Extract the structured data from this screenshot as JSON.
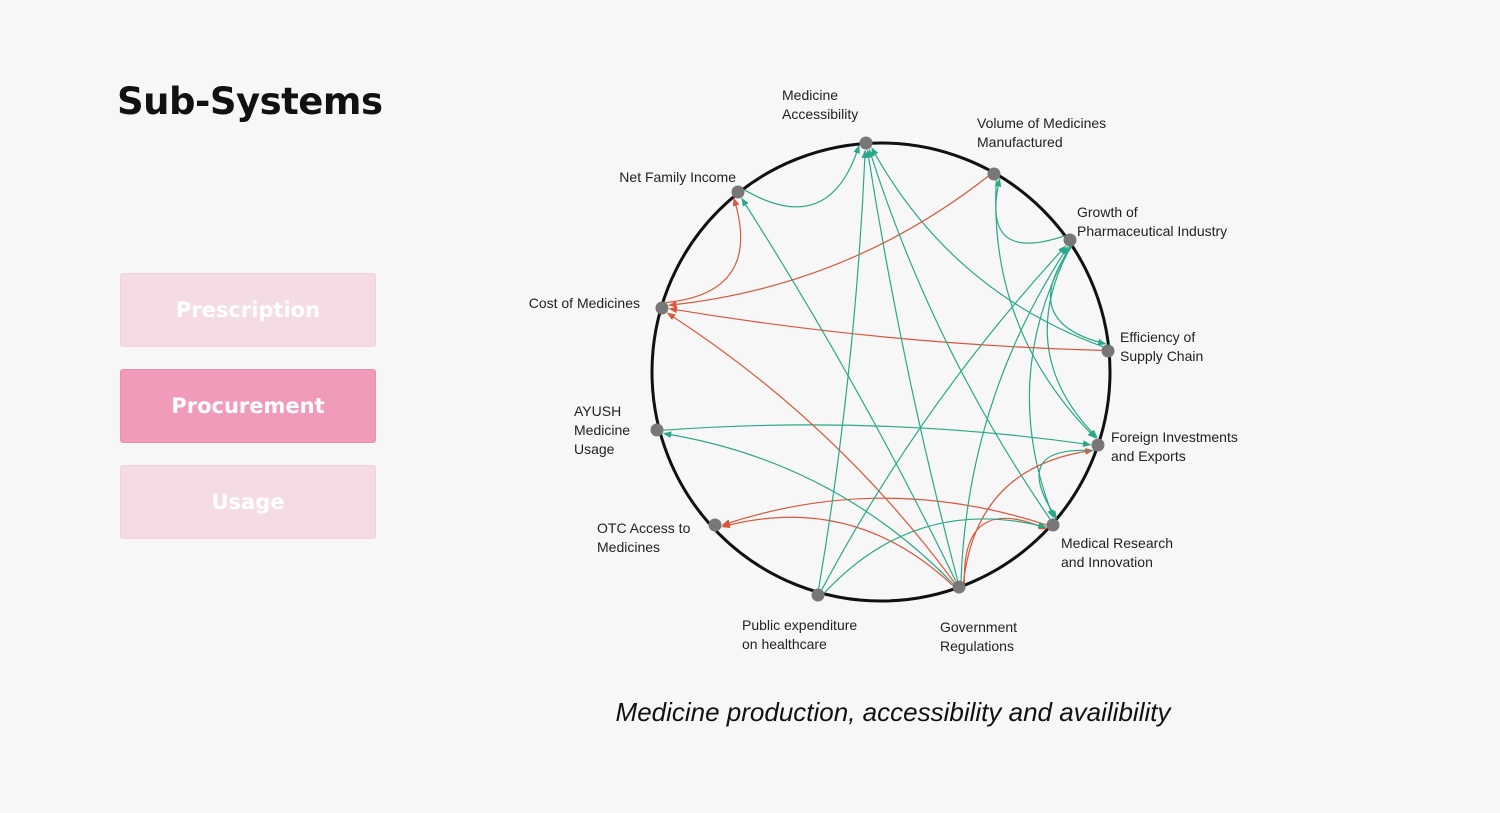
{
  "title": "Sub-Systems",
  "nav": [
    {
      "label": "Prescription",
      "active": false
    },
    {
      "label": "Procurement",
      "active": true
    },
    {
      "label": "Usage",
      "active": false
    }
  ],
  "caption": "Medicine production, accessibility and availibility",
  "colors": {
    "positive": "#2aa889",
    "negative": "#d9573c",
    "node": "#777777",
    "ring": "#111111"
  },
  "nodes": [
    {
      "id": "ma",
      "lines": [
        "Medicine",
        "Accessibility"
      ]
    },
    {
      "id": "vmm",
      "lines": [
        "Volume of Medicines",
        "Manufactured"
      ]
    },
    {
      "id": "gpi",
      "lines": [
        "Growth of",
        "Pharmaceutical Industry"
      ]
    },
    {
      "id": "esc",
      "lines": [
        "Efficiency of",
        "Supply Chain"
      ]
    },
    {
      "id": "fie",
      "lines": [
        "Foreign Investments",
        "and Exports"
      ]
    },
    {
      "id": "mri",
      "lines": [
        "Medical Research",
        "and Innovation"
      ]
    },
    {
      "id": "gr",
      "lines": [
        "Government",
        "Regulations"
      ]
    },
    {
      "id": "peh",
      "lines": [
        "Public expenditure",
        "on healthcare"
      ]
    },
    {
      "id": "otc",
      "lines": [
        "OTC Access to",
        "Medicines"
      ]
    },
    {
      "id": "ayu",
      "lines": [
        "AYUSH",
        "Medicine",
        "Usage"
      ]
    },
    {
      "id": "com",
      "lines": [
        "Cost of Medicines"
      ]
    },
    {
      "id": "nfi",
      "lines": [
        "Net Family Income"
      ]
    }
  ],
  "links": [
    {
      "from": "nfi",
      "to": "ma",
      "polarity": "positive"
    },
    {
      "from": "gpi",
      "to": "vmm",
      "polarity": "positive"
    },
    {
      "from": "gpi",
      "to": "esc",
      "polarity": "positive"
    },
    {
      "from": "gpi",
      "to": "fie",
      "polarity": "positive"
    },
    {
      "from": "gpi",
      "to": "mri",
      "polarity": "positive"
    },
    {
      "from": "esc",
      "to": "ma",
      "polarity": "positive"
    },
    {
      "from": "vmm",
      "to": "com",
      "polarity": "negative"
    },
    {
      "from": "vmm",
      "to": "fie",
      "polarity": "positive"
    },
    {
      "from": "esc",
      "to": "com",
      "polarity": "negative"
    },
    {
      "from": "com",
      "to": "nfi",
      "polarity": "negative"
    },
    {
      "from": "mri",
      "to": "ma",
      "polarity": "positive"
    },
    {
      "from": "mri",
      "to": "otc",
      "polarity": "negative"
    },
    {
      "from": "ayu",
      "to": "fie",
      "polarity": "positive"
    },
    {
      "from": "gr",
      "to": "com",
      "polarity": "negative"
    },
    {
      "from": "gr",
      "to": "ma",
      "polarity": "positive"
    },
    {
      "from": "gr",
      "to": "nfi",
      "polarity": "positive"
    },
    {
      "from": "gr",
      "to": "gpi",
      "polarity": "positive"
    },
    {
      "from": "gr",
      "to": "fie",
      "polarity": "negative"
    },
    {
      "from": "gr",
      "to": "mri",
      "polarity": "negative"
    },
    {
      "from": "gr",
      "to": "ayu",
      "polarity": "positive"
    },
    {
      "from": "gr",
      "to": "otc",
      "polarity": "negative"
    },
    {
      "from": "peh",
      "to": "ma",
      "polarity": "positive"
    },
    {
      "from": "peh",
      "to": "gpi",
      "polarity": "positive"
    },
    {
      "from": "peh",
      "to": "mri",
      "polarity": "positive"
    },
    {
      "from": "fie",
      "to": "mri",
      "polarity": "positive"
    }
  ]
}
